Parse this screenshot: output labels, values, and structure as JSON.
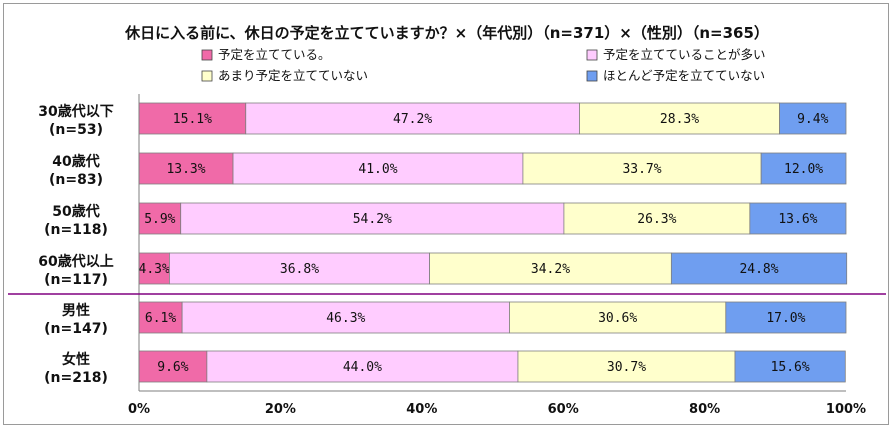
{
  "chart_data": {
    "type": "bar",
    "orientation": "horizontal",
    "stacked": "percent",
    "title": "休日に入る前に、休日の予定を立てていますか？×（年代別）（n=371）×（性別）（n=365）",
    "categories": [
      [
        "30歳代以下",
        "(n=53)"
      ],
      [
        "40歳代",
        "(n=83)"
      ],
      [
        "50歳代",
        "(n=118)"
      ],
      [
        "60歳代以上",
        "(n=117)"
      ],
      [
        "男性",
        "(n=147)"
      ],
      [
        "女性",
        "(n=218)"
      ]
    ],
    "series": [
      {
        "name": "予定を立てている。",
        "color": "#f06aa8",
        "values": [
          15.1,
          13.3,
          5.9,
          4.3,
          6.1,
          9.6
        ]
      },
      {
        "name": "予定を立てていることが多い",
        "color": "#ffccff",
        "values": [
          47.2,
          41.0,
          54.2,
          36.8,
          46.3,
          44.0
        ]
      },
      {
        "name": "あまり予定を立てていない",
        "color": "#ffffcc",
        "values": [
          28.3,
          33.7,
          26.3,
          34.2,
          30.6,
          30.7
        ]
      },
      {
        "name": "ほとんど予定を立てていない",
        "color": "#6f9ef0",
        "values": [
          9.4,
          12.0,
          13.6,
          24.8,
          17.0,
          15.6
        ]
      }
    ],
    "xticks": [
      "0%",
      "20%",
      "40%",
      "60%",
      "80%",
      "100%"
    ],
    "xlim": [
      0,
      100
    ],
    "legend_position": "top",
    "grid": false,
    "divider_color": "#800080"
  }
}
